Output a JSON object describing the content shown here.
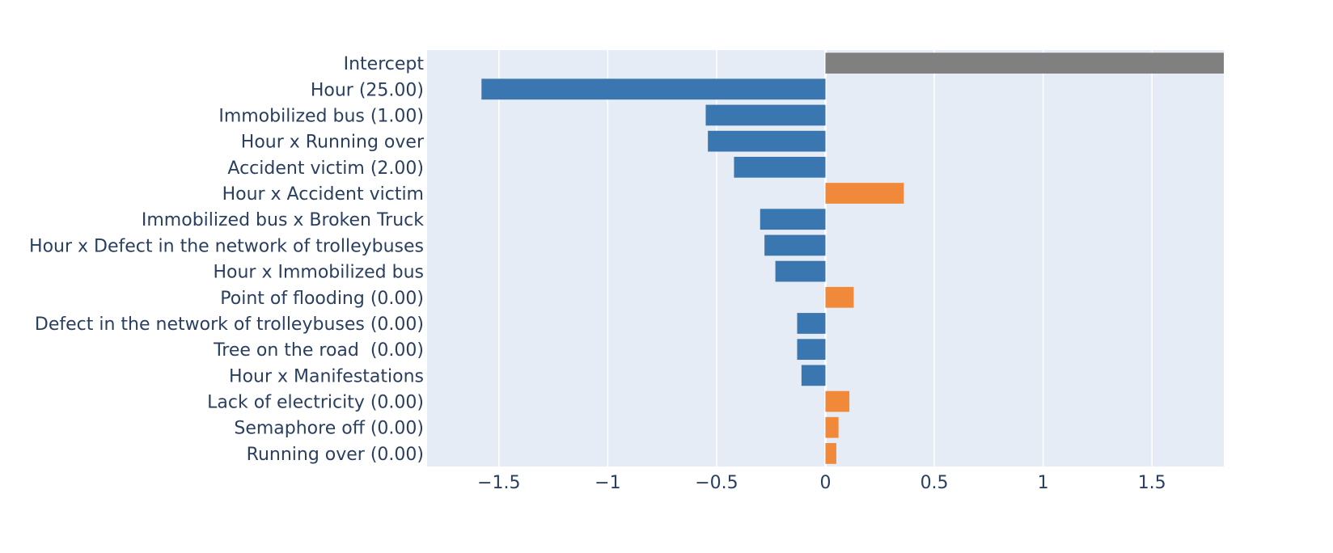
{
  "chart_data": {
    "type": "bar",
    "orientation": "horizontal",
    "title": "",
    "xlabel": "",
    "ylabel": "",
    "xlim": [
      -1.83,
      1.83
    ],
    "grid": true,
    "legend": "none",
    "colors": {
      "intercept": "#808080",
      "negative": "#3a76af",
      "positive": "#f08a3a",
      "plot_background": "#e5ecf6",
      "grid": "#ffffff",
      "text": "#2a3f5f"
    },
    "x_ticks": [
      {
        "value": -1.5,
        "label": "−1.5"
      },
      {
        "value": -1,
        "label": "−1"
      },
      {
        "value": -0.5,
        "label": "−0.5"
      },
      {
        "value": 0,
        "label": "0"
      },
      {
        "value": 0.5,
        "label": "0.5"
      },
      {
        "value": 1,
        "label": "1"
      },
      {
        "value": 1.5,
        "label": "1.5"
      }
    ],
    "bars": [
      {
        "label": "Intercept",
        "value": 1.83,
        "kind": "intercept"
      },
      {
        "label": "Hour (25.00)",
        "value": -1.58,
        "kind": "negative"
      },
      {
        "label": "Immobilized bus (1.00)",
        "value": -0.55,
        "kind": "negative"
      },
      {
        "label": "Hour x Running over",
        "value": -0.54,
        "kind": "negative"
      },
      {
        "label": "Accident victim (2.00)",
        "value": -0.42,
        "kind": "negative"
      },
      {
        "label": "Hour x Accident victim",
        "value": 0.36,
        "kind": "positive"
      },
      {
        "label": "Immobilized bus x Broken Truck",
        "value": -0.3,
        "kind": "negative"
      },
      {
        "label": "Hour x Defect in the network of trolleybuses",
        "value": -0.28,
        "kind": "negative"
      },
      {
        "label": "Hour x Immobilized bus",
        "value": -0.23,
        "kind": "negative"
      },
      {
        "label": "Point of flooding (0.00)",
        "value": 0.13,
        "kind": "positive"
      },
      {
        "label": "Defect in the network of trolleybuses (0.00)",
        "value": -0.13,
        "kind": "negative"
      },
      {
        "label": "Tree on the road  (0.00)",
        "value": -0.13,
        "kind": "negative"
      },
      {
        "label": "Hour x Manifestations",
        "value": -0.11,
        "kind": "negative"
      },
      {
        "label": "Lack of electricity (0.00)",
        "value": 0.11,
        "kind": "positive"
      },
      {
        "label": "Semaphore off (0.00)",
        "value": 0.06,
        "kind": "positive"
      },
      {
        "label": "Running over (0.00)",
        "value": 0.05,
        "kind": "positive"
      }
    ]
  }
}
